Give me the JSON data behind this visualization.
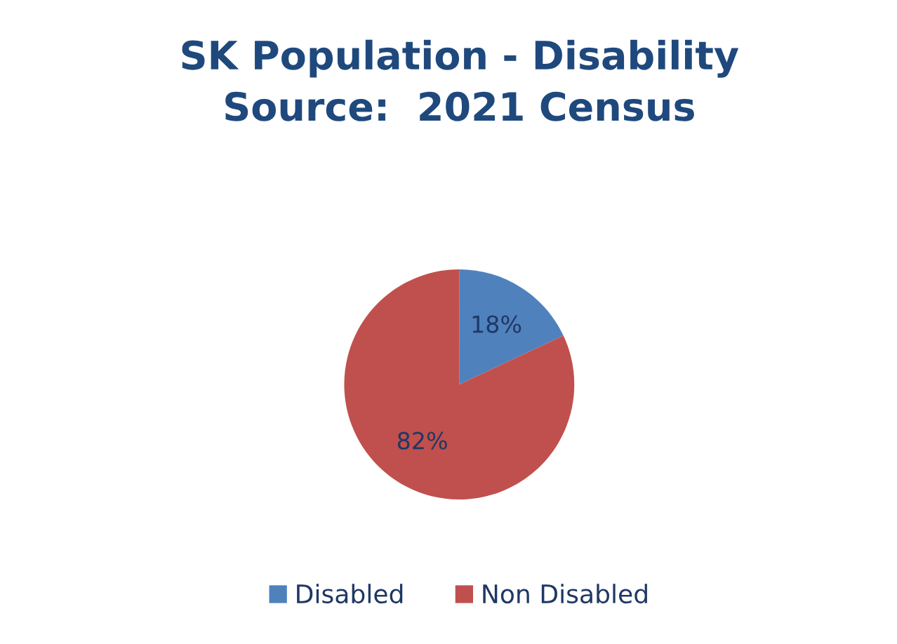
{
  "chart_data": {
    "type": "pie",
    "title": "SK Population - Disability\nSource:  2021 Census",
    "categories": [
      "Disabled",
      "Non Disabled"
    ],
    "values": [
      18,
      82
    ],
    "colors": [
      "#4f81bd",
      "#c0504d"
    ],
    "value_labels": [
      "18%",
      "82%"
    ],
    "legend": "bottom"
  }
}
